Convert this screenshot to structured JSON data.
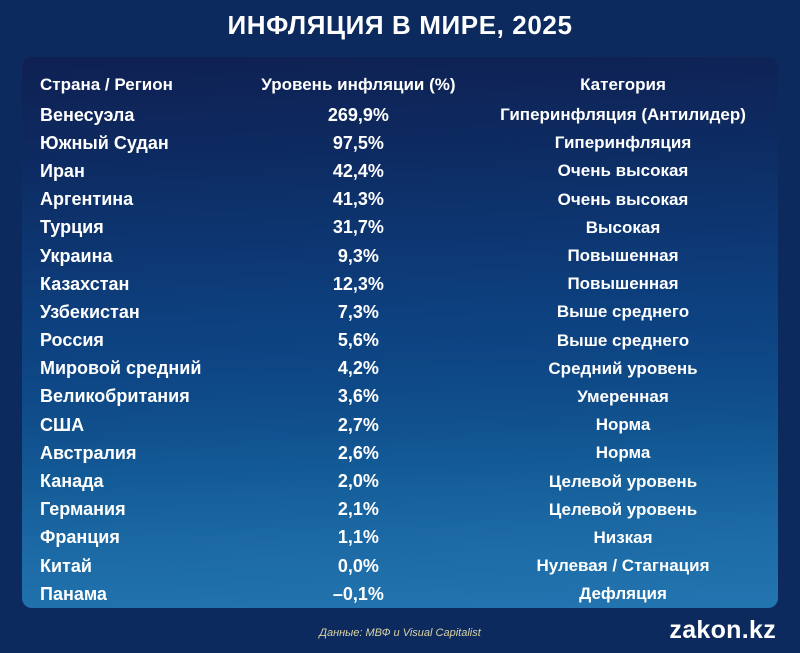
{
  "title": "ИНФЛЯЦИЯ В МИРЕ, 2025",
  "table": {
    "headers": [
      "Страна / Регион",
      "Уровень инфляции (%)",
      "Категория"
    ],
    "rows": [
      {
        "country": "Венесуэла",
        "rate": "269,9%",
        "category": "Гиперинфляция (Антилидер)"
      },
      {
        "country": "Южный Судан",
        "rate": "97,5%",
        "category": "Гиперинфляция"
      },
      {
        "country": "Иран",
        "rate": "42,4%",
        "category": "Очень высокая"
      },
      {
        "country": "Аргентина",
        "rate": "41,3%",
        "category": "Очень высокая"
      },
      {
        "country": "Турция",
        "rate": "31,7%",
        "category": "Высокая"
      },
      {
        "country": "Украина",
        "rate": "9,3%",
        "category": "Повышенная"
      },
      {
        "country": "Казахстан",
        "rate": "12,3%",
        "category": "Повышенная"
      },
      {
        "country": "Узбекистан",
        "rate": "7,3%",
        "category": "Выше среднего"
      },
      {
        "country": "Россия",
        "rate": "5,6%",
        "category": "Выше среднего"
      },
      {
        "country": "Мировой средний",
        "rate": "4,2%",
        "category": "Средний уровень"
      },
      {
        "country": "Великобритания",
        "rate": "3,6%",
        "category": "Умеренная"
      },
      {
        "country": "США",
        "rate": "2,7%",
        "category": "Норма"
      },
      {
        "country": "Австралия",
        "rate": "2,6%",
        "category": "Норма"
      },
      {
        "country": "Канада",
        "rate": "2,0%",
        "category": "Целевой уровень"
      },
      {
        "country": "Германия",
        "rate": "2,1%",
        "category": "Целевой уровень"
      },
      {
        "country": "Франция",
        "rate": "1,1%",
        "category": "Низкая"
      },
      {
        "country": "Китай",
        "rate": "0,0%",
        "category": "Нулевая / Стагнация"
      },
      {
        "country": "Панама",
        "rate": "–0,1%",
        "category": "Дефляция"
      }
    ]
  },
  "footer": {
    "source": "Данные: МВФ и Visual Capitalist",
    "logo": "zakon.kz"
  },
  "colors": {
    "background_indigo": "#2c3a86",
    "background_blue": "#16498e",
    "panel_top": "#0f2052",
    "panel_bottom": "#2274af",
    "text": "#ffffff",
    "source_text": "#d9d3a6"
  },
  "chart_data": {
    "type": "table",
    "title": "ИНФЛЯЦИЯ В МИРЕ, 2025",
    "columns": [
      "Страна / Регион",
      "Уровень инфляции (%)",
      "Категория"
    ],
    "categories": [
      "Венесуэла",
      "Южный Судан",
      "Иран",
      "Аргентина",
      "Турция",
      "Украина",
      "Казахстан",
      "Узбекистан",
      "Россия",
      "Мировой средний",
      "Великобритания",
      "США",
      "Австралия",
      "Канада",
      "Германия",
      "Франция",
      "Китай",
      "Панама"
    ],
    "values": [
      269.9,
      97.5,
      42.4,
      41.3,
      31.7,
      9.3,
      12.3,
      7.3,
      5.6,
      4.2,
      3.6,
      2.7,
      2.6,
      2.0,
      2.1,
      1.1,
      0.0,
      -0.1
    ],
    "value_labels": [
      "269,9%",
      "97,5%",
      "42,4%",
      "41,3%",
      "31,7%",
      "9,3%",
      "12,3%",
      "7,3%",
      "5,6%",
      "4,2%",
      "3,6%",
      "2,7%",
      "2,6%",
      "2,0%",
      "2,1%",
      "1,1%",
      "0,0%",
      "–0,1%"
    ],
    "category_labels": [
      "Гиперинфляция (Антилидер)",
      "Гиперинфляция",
      "Очень высокая",
      "Очень высокая",
      "Высокая",
      "Повышенная",
      "Повышенная",
      "Выше среднего",
      "Выше среднего",
      "Средний уровень",
      "Умеренная",
      "Норма",
      "Норма",
      "Целевой уровень",
      "Целевой уровень",
      "Низкая",
      "Нулевая / Стагнация",
      "Дефляция"
    ],
    "source": "Данные: МВФ и Visual Capitalist"
  }
}
